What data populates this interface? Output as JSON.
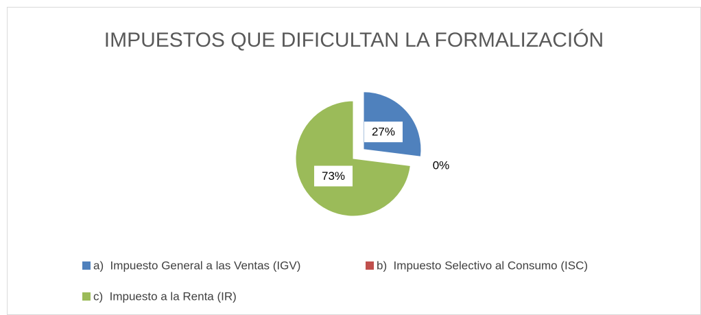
{
  "chart_data": {
    "type": "pie",
    "title": "IMPUESTOS QUE DIFICULTAN LA FORMALIZACIÓN",
    "categories": [
      "a)  Impuesto General a las Ventas (IGV)",
      "b)  Impuesto Selectivo al Consumo (ISC)",
      "c)  Impuesto a la Renta (IR)"
    ],
    "values": [
      27,
      0,
      73
    ],
    "value_labels": [
      "27%",
      "0%",
      "73%"
    ],
    "colors": [
      "#4f81bd",
      "#c0504d",
      "#9bbb59"
    ],
    "exploded": [
      true,
      false,
      false
    ],
    "legend": "bottom"
  }
}
